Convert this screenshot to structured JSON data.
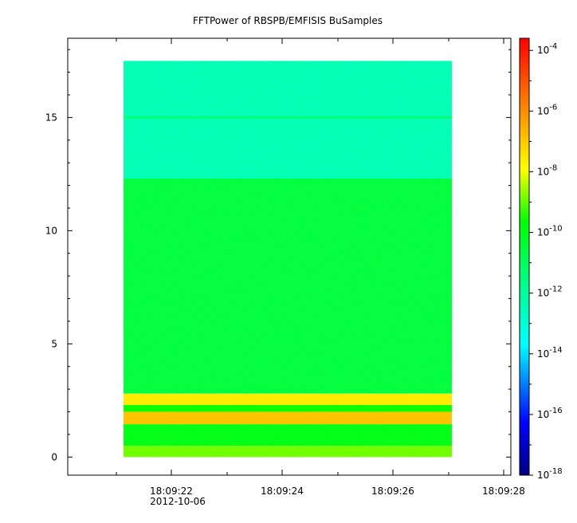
{
  "chart_data": {
    "type": "heatmap",
    "title": "FFTPower of RBSPB/EMFISIS  BuSamples",
    "xlabel": "",
    "ylabel": "",
    "x_ticks": [
      "18:09:22",
      "18:09:24",
      "18:09:26",
      "18:09:28"
    ],
    "x_sublabel": "2012-10-06",
    "y_ticks": [
      0,
      5,
      10,
      15
    ],
    "ylim": [
      -0.8,
      18.5
    ],
    "data_yrange": [
      0,
      17.5
    ],
    "colorbar": {
      "scale": "log",
      "range_exponents": [
        -18,
        -3.6
      ],
      "tick_mantissa": "10",
      "tick_exponents": [
        -18,
        -16,
        -14,
        -12,
        -10,
        -8,
        -6,
        -4
      ]
    },
    "bands": [
      {
        "y_from": 0,
        "y_to": 0.5,
        "log_power": -8.9
      },
      {
        "y_from": 0.5,
        "y_to": 1.45,
        "log_power": -10.0
      },
      {
        "y_from": 1.45,
        "y_to": 2.0,
        "log_power": -6.9
      },
      {
        "y_from": 2.0,
        "y_to": 2.3,
        "log_power": -9.6
      },
      {
        "y_from": 2.3,
        "y_to": 2.8,
        "log_power": -7.6
      },
      {
        "y_from": 2.8,
        "y_to": 12.3,
        "log_power": -10.6
      },
      {
        "y_from": 12.3,
        "y_to": 17.5,
        "log_power": -12.5
      }
    ],
    "lines": [
      {
        "y": 15.0,
        "log_power": -11.0
      }
    ],
    "grid": false,
    "legend": "none"
  }
}
